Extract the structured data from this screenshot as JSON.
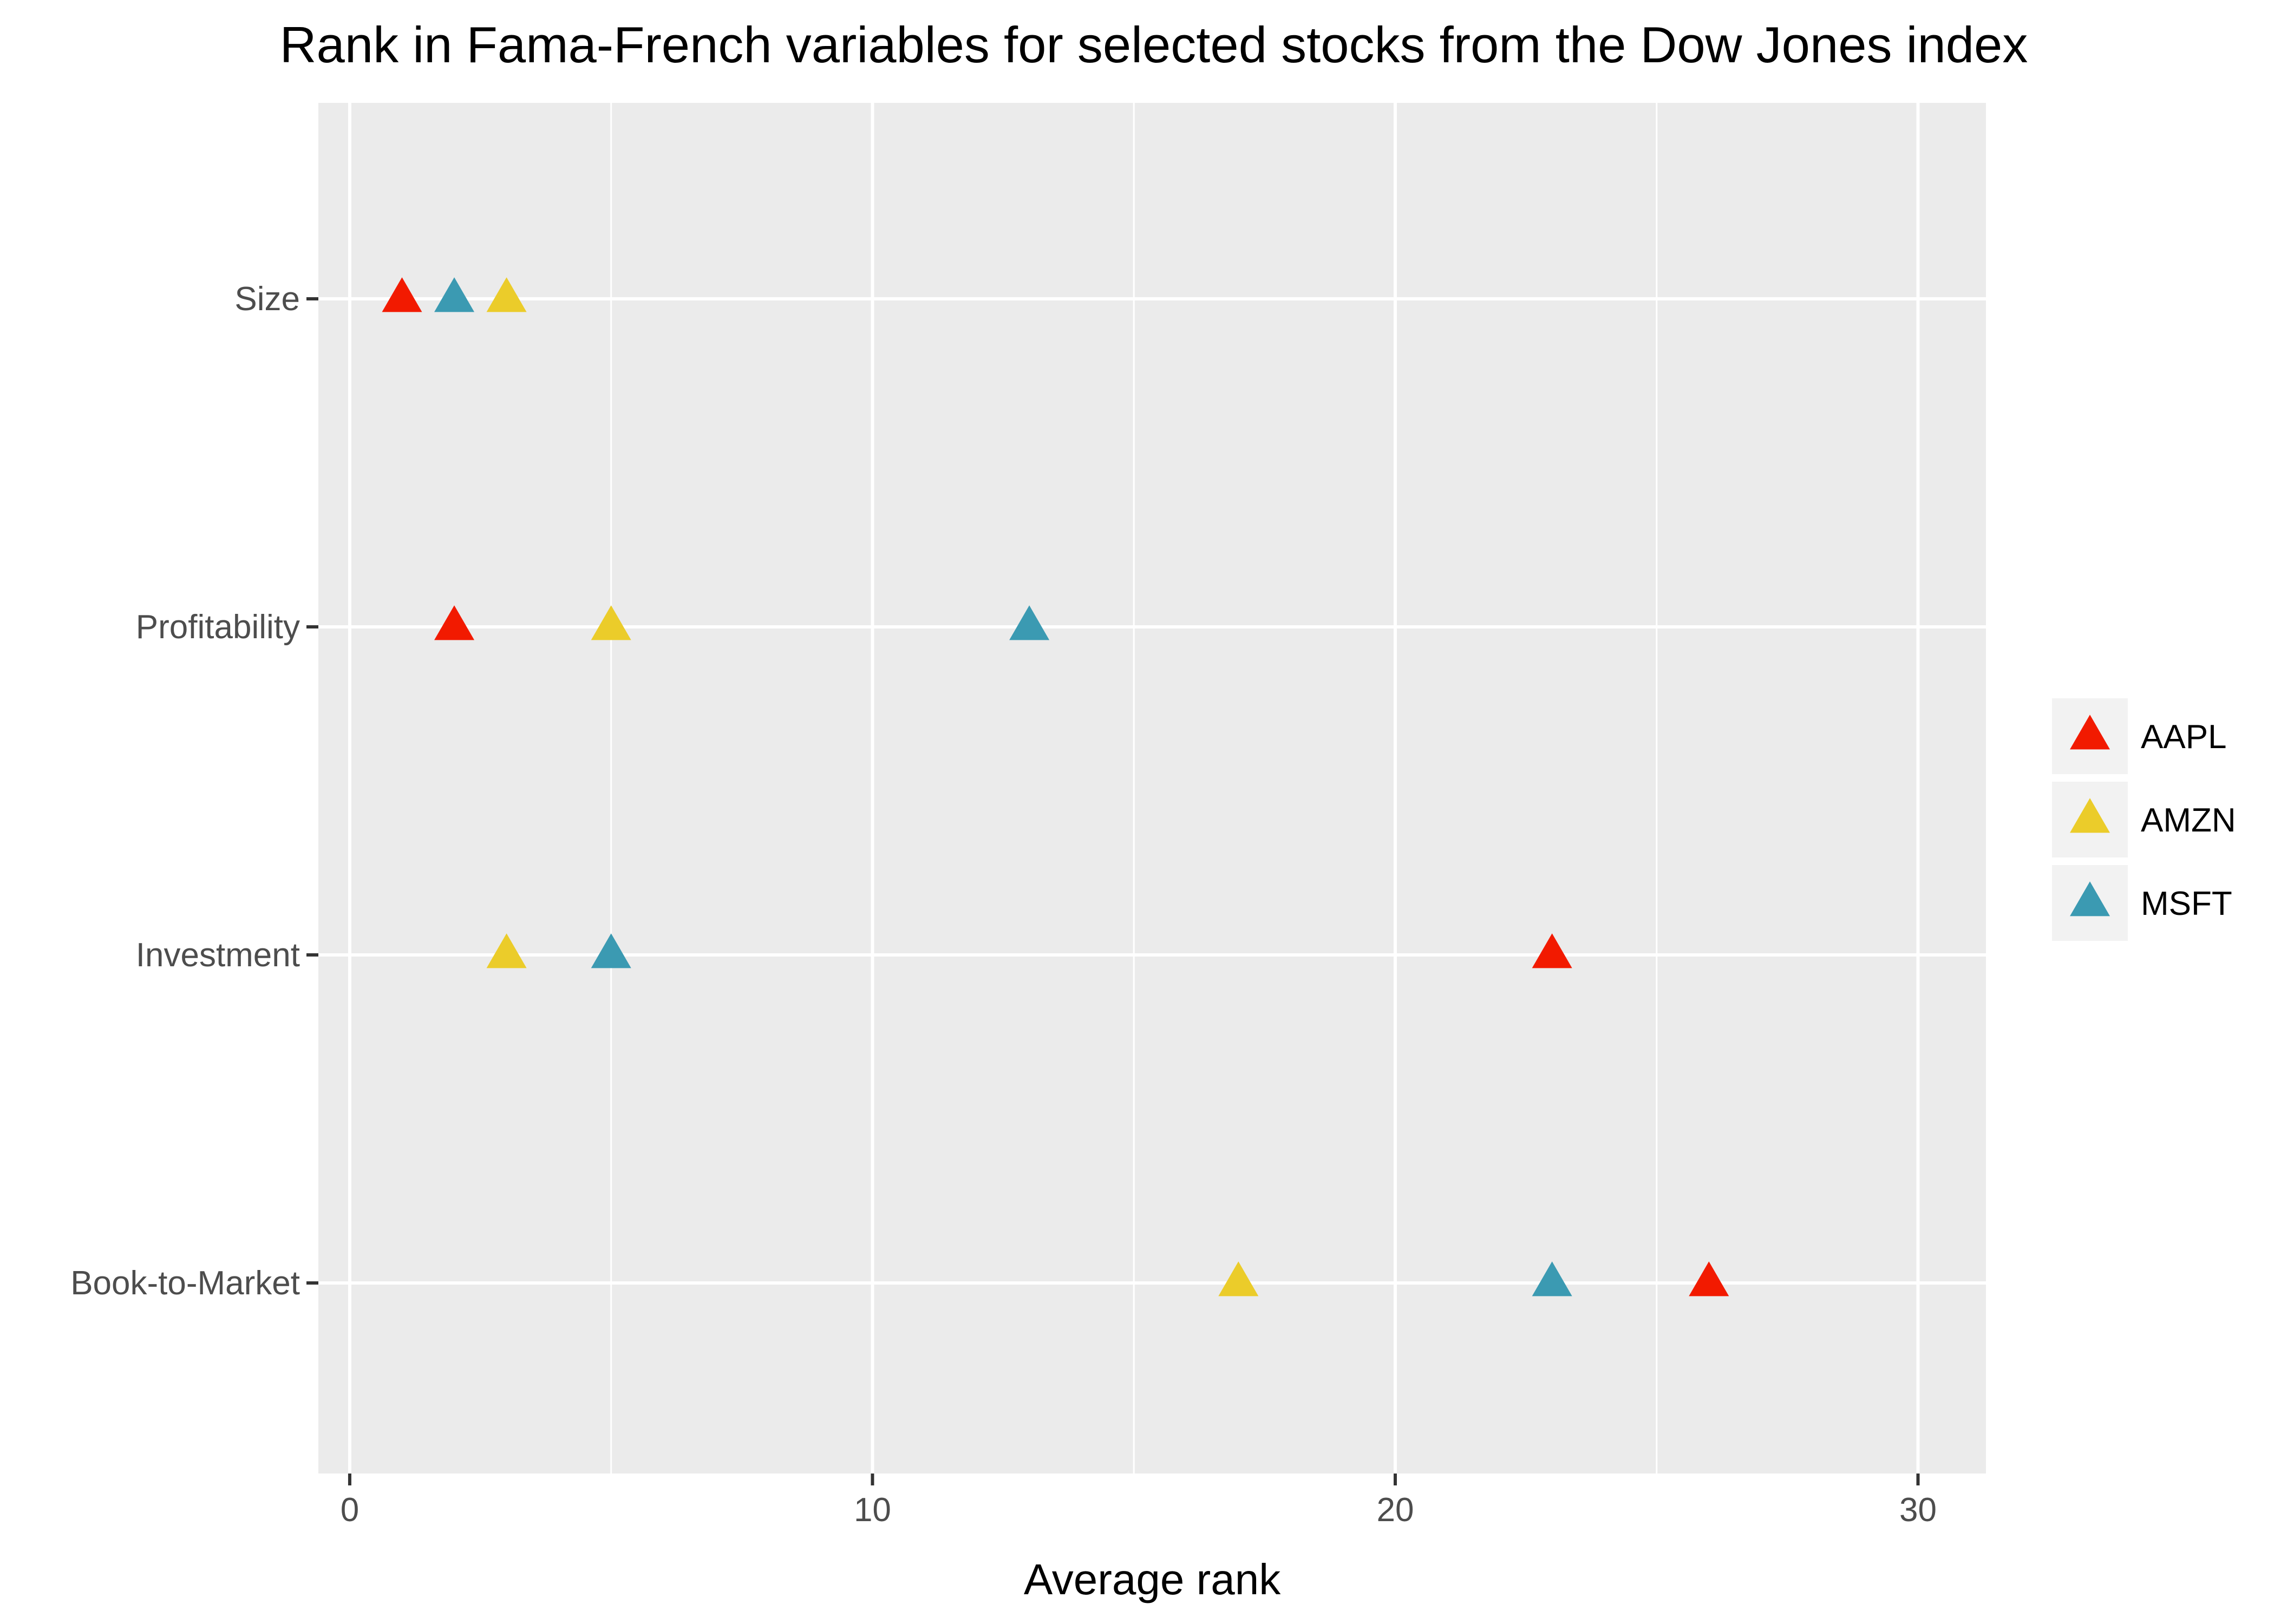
{
  "chart_data": {
    "type": "scatter",
    "title": "Rank in Fama-French variables for selected stocks from the Dow Jones index",
    "xlabel": "Average rank",
    "ylabel": "",
    "xlim": [
      -0.6,
      31.3
    ],
    "x_ticks": [
      "0",
      "10",
      "20",
      "30"
    ],
    "x_tick_values": [
      0,
      10,
      20,
      30
    ],
    "categories": [
      "Size",
      "Profitability",
      "Investment",
      "Book-to-Market"
    ],
    "grid": true,
    "legend_position": "right",
    "marker": "triangle",
    "series": [
      {
        "name": "AAPL",
        "color": "#f21a00",
        "values": [
          1,
          2,
          23,
          26
        ]
      },
      {
        "name": "AMZN",
        "color": "#ebcc2a",
        "values": [
          3,
          5,
          3,
          17
        ]
      },
      {
        "name": "MSFT",
        "color": "#3b9ab2",
        "values": [
          2,
          13,
          5,
          23
        ]
      }
    ]
  }
}
